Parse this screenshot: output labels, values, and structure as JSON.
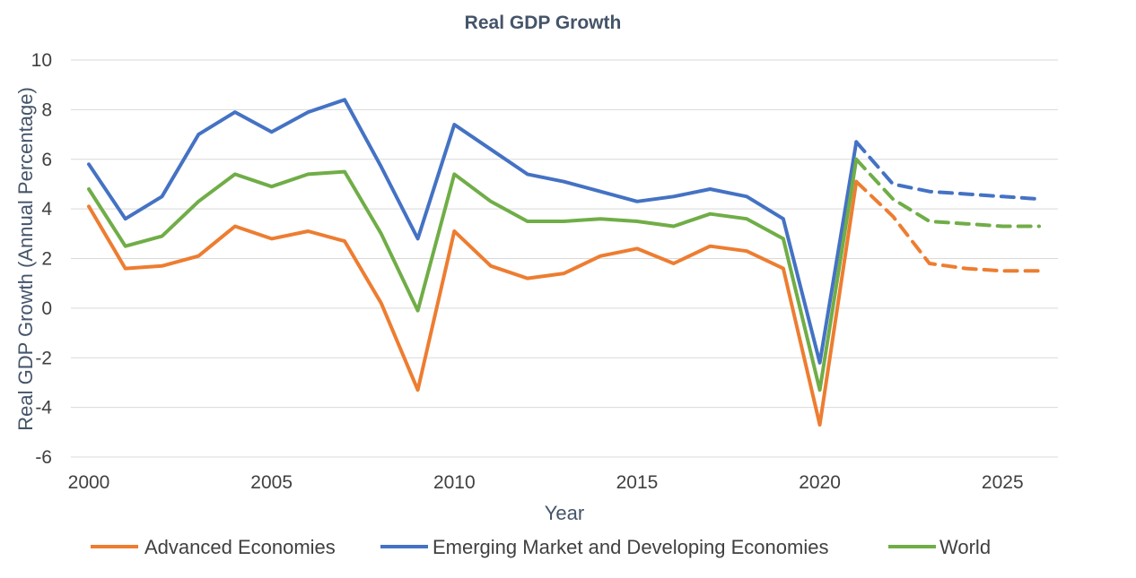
{
  "chart_data": {
    "type": "line",
    "title": "Real GDP Growth",
    "xlabel": "Year",
    "ylabel": "Real GDP Growth (Annual Percentage)",
    "xlim": [
      2000,
      2026
    ],
    "ylim": [
      -6,
      10
    ],
    "x_ticks": [
      2000,
      2005,
      2010,
      2015,
      2020,
      2025
    ],
    "y_ticks": [
      -6,
      -4,
      -2,
      0,
      2,
      4,
      6,
      8,
      10
    ],
    "grid": true,
    "legend_position": "bottom",
    "x": [
      2000,
      2001,
      2002,
      2003,
      2004,
      2005,
      2006,
      2007,
      2008,
      2009,
      2010,
      2011,
      2012,
      2013,
      2014,
      2015,
      2016,
      2017,
      2018,
      2019,
      2020,
      2021,
      2022,
      2023,
      2024,
      2025,
      2026
    ],
    "projection_start": 2021,
    "series": [
      {
        "name": "Advanced Economies",
        "color": "#ed7d31",
        "values": [
          4.1,
          1.6,
          1.7,
          2.1,
          3.3,
          2.8,
          3.1,
          2.7,
          0.2,
          -3.3,
          3.1,
          1.7,
          1.2,
          1.4,
          2.1,
          2.4,
          1.8,
          2.5,
          2.3,
          1.6,
          -4.7,
          5.1,
          3.7,
          1.8,
          1.6,
          1.5,
          1.5
        ]
      },
      {
        "name": "Emerging Market and Developing Economies",
        "color": "#4472c4",
        "values": [
          5.8,
          3.6,
          4.5,
          7.0,
          7.9,
          7.1,
          7.9,
          8.4,
          5.7,
          2.8,
          7.4,
          6.4,
          5.4,
          5.1,
          4.7,
          4.3,
          4.5,
          4.8,
          4.5,
          3.6,
          -2.2,
          6.7,
          5.0,
          4.7,
          4.6,
          4.5,
          4.4
        ]
      },
      {
        "name": "World",
        "color": "#70ad47",
        "values": [
          4.8,
          2.5,
          2.9,
          4.3,
          5.4,
          4.9,
          5.4,
          5.5,
          3.0,
          -0.1,
          5.4,
          4.3,
          3.5,
          3.5,
          3.6,
          3.5,
          3.3,
          3.8,
          3.6,
          2.8,
          -3.3,
          6.0,
          4.4,
          3.5,
          3.4,
          3.3,
          3.3
        ]
      }
    ]
  }
}
